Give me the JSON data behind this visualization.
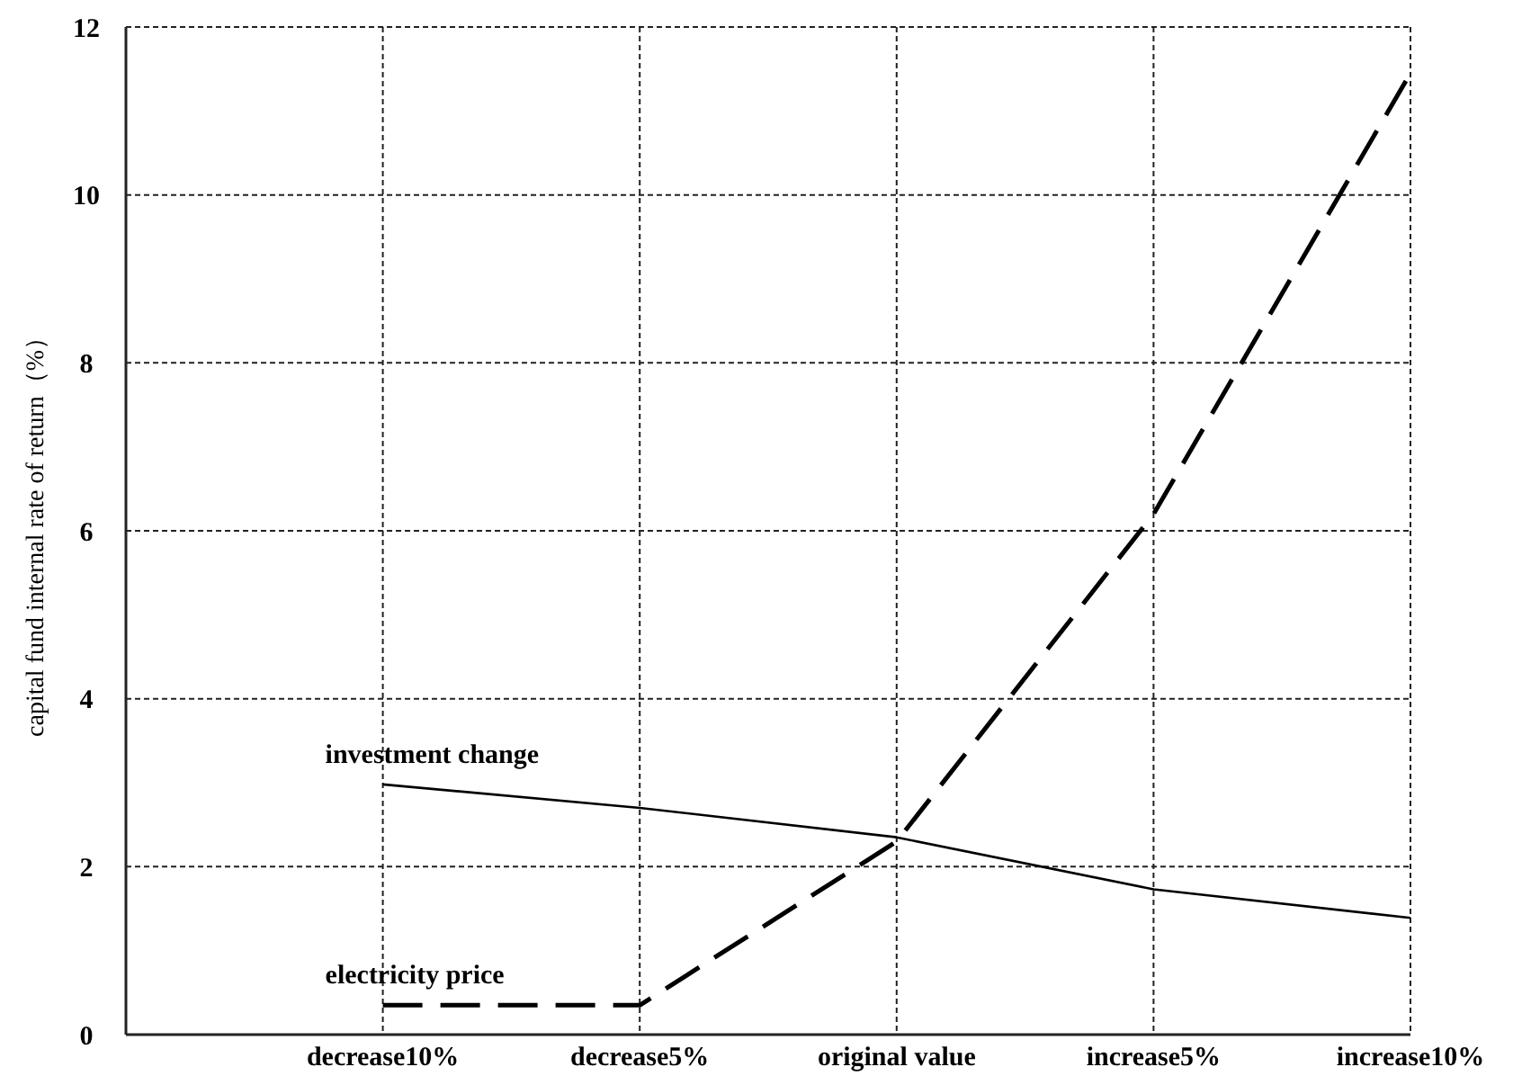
{
  "chart_data": {
    "type": "line",
    "ylabel": "capital fund internal rate of return（%）",
    "categories": [
      null,
      "decrease10%",
      "decrease5%",
      "original value",
      "increase5%",
      "increase10%"
    ],
    "ylim": [
      0,
      12
    ],
    "yticks": [
      0,
      2,
      4,
      6,
      8,
      10,
      12
    ],
    "grid": true,
    "series": [
      {
        "name": "investment change",
        "color": "#000000",
        "line_style": "solid",
        "values": [
          null,
          2.98,
          2.7,
          2.35,
          1.73,
          1.39
        ]
      },
      {
        "name": "electricity price",
        "color": "#000000",
        "line_style": "dashed",
        "values": [
          null,
          0.35,
          0.35,
          2.3,
          6.2,
          11.45
        ]
      }
    ]
  }
}
